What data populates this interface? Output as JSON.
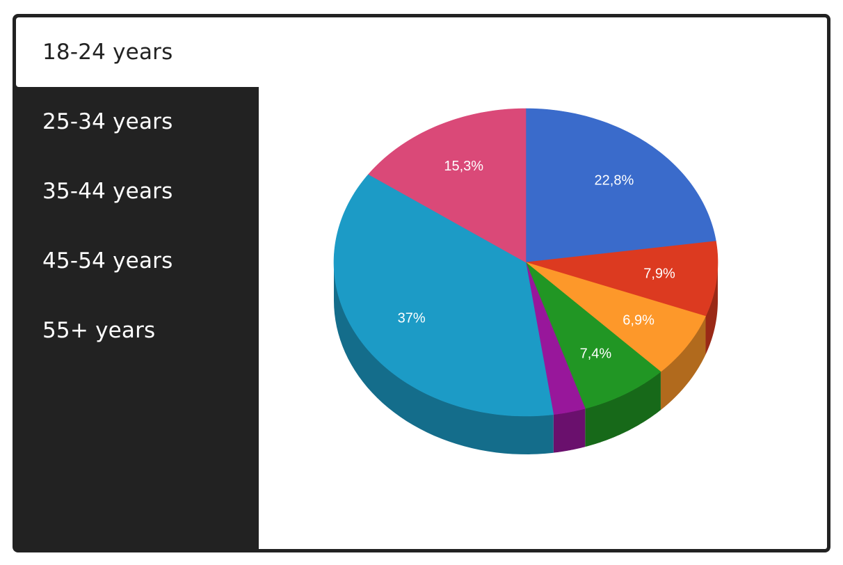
{
  "tabs": [
    {
      "label": "18-24 years",
      "active": true
    },
    {
      "label": "25-34 years",
      "active": false
    },
    {
      "label": "35-44 years",
      "active": false
    },
    {
      "label": "45-54 years",
      "active": false
    },
    {
      "label": "55+ years",
      "active": false
    }
  ],
  "colors": {
    "frame": "#222222",
    "tab_text": "#ffffff",
    "active_tab_bg": "#ffffff",
    "active_tab_text": "#222222"
  },
  "chart_data": {
    "type": "pie",
    "three_d": true,
    "title": "",
    "slices": [
      {
        "value": 22.8,
        "label": "22,8%",
        "color": "#3a6bcb"
      },
      {
        "value": 7.9,
        "label": "7,9%",
        "color": "#dc3a20"
      },
      {
        "value": 6.9,
        "label": "6,9%",
        "color": "#fd982a"
      },
      {
        "value": 7.4,
        "label": "7,4%",
        "color": "#219624"
      },
      {
        "value": 2.7,
        "label": "",
        "color": "#98179b"
      },
      {
        "value": 37,
        "label": "37%",
        "color": "#1c9bc6"
      },
      {
        "value": 15.3,
        "label": "15,3%",
        "color": "#da4978"
      }
    ]
  }
}
